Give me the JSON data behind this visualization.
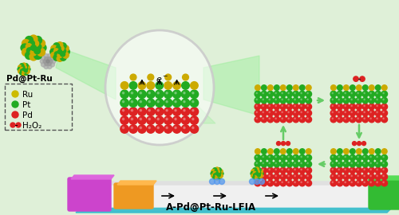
{
  "bg_color": "#dff0d8",
  "title": "A-Pd@Pt-Ru-LFIA",
  "pd_label": "Pd@Pt-Ru",
  "legend_items": [
    {
      "label": "Ru",
      "color": "#ccbb00"
    },
    {
      "label": "Pt",
      "color": "#22aa22"
    },
    {
      "label": "Pd",
      "color": "#dd2222"
    },
    {
      "label": "H₂O₂",
      "color": "#dd2222"
    }
  ],
  "arrow_color": "#66cc66",
  "red_color": "#dd2222",
  "green_color": "#22aa22",
  "gold_color": "#ccaa00",
  "purple_color": "#cc44cc",
  "orange_color": "#ee9922",
  "cyan_color": "#33bbcc",
  "white_strip_color": "#f0f0f0",
  "green_strip_color": "#33bb33",
  "shadow_color": "#aaaaaa"
}
